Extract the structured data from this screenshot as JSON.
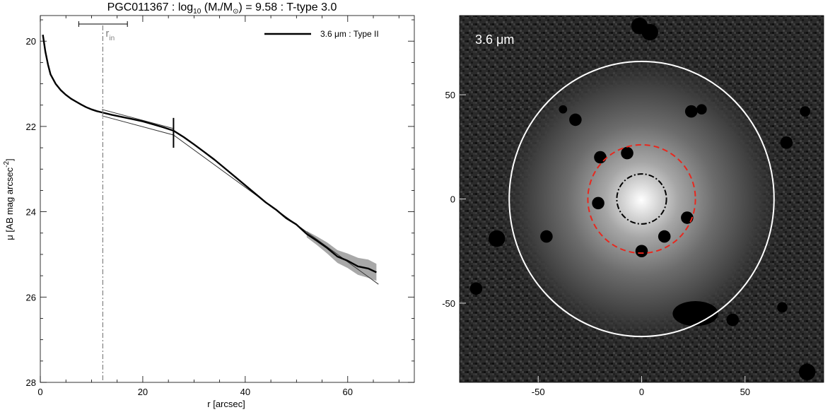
{
  "colors": {
    "profile": "#000000",
    "fit": "#333333",
    "band": "#a8a8a8",
    "rin_line": "#808080",
    "ring_outer": "#ffffff",
    "ring_break": "#e8281e",
    "ring_inner": "#000000",
    "image_bg": "#202020"
  },
  "chart_data": [
    {
      "type": "line",
      "title": {
        "prefix": "PGC011367 : log",
        "sub10": "10",
        "mid": " (M",
        "star": "*",
        "slash": "/M",
        "sun": "⊙",
        "suffix": ") = 9.58 : T-type 3.0"
      },
      "xlabel": "r [arcsec]",
      "ylabel": {
        "main": "μ [AB mag arcsec",
        "exp": "-2",
        "close": "]"
      },
      "xlim": [
        0,
        73
      ],
      "ylim": [
        28,
        19.4
      ],
      "y_inverted": true,
      "xticks": [
        0,
        20,
        40,
        60
      ],
      "xtick_labels": [
        "0",
        "20",
        "40",
        "60"
      ],
      "yticks": [
        20,
        22,
        24,
        26,
        28
      ],
      "ytick_labels": [
        "20",
        "22",
        "24",
        "26",
        "28"
      ],
      "legend": {
        "label": "3.6 μm : Type II",
        "position": "top-right"
      },
      "r_in": {
        "label": "r",
        "sub": "in",
        "x": 12.2,
        "bar_x": [
          7.5,
          17
        ]
      },
      "break_r": 26.0,
      "series": [
        {
          "name": "3.6 μm : Type II",
          "x": [
            0.5,
            1,
            1.5,
            2,
            3,
            4,
            5,
            6,
            7,
            8,
            9,
            10,
            11,
            12,
            14,
            16,
            18,
            20,
            22,
            24,
            26,
            28,
            30,
            32,
            34,
            36,
            38,
            40,
            42,
            44,
            46,
            48,
            50,
            52,
            54,
            56,
            58,
            60,
            62,
            64,
            65.6
          ],
          "y": [
            19.85,
            20.25,
            20.55,
            20.78,
            21.0,
            21.15,
            21.26,
            21.35,
            21.42,
            21.49,
            21.55,
            21.6,
            21.64,
            21.67,
            21.73,
            21.78,
            21.83,
            21.88,
            21.95,
            22.02,
            22.1,
            22.25,
            22.42,
            22.6,
            22.78,
            22.98,
            23.18,
            23.38,
            23.58,
            23.78,
            23.95,
            24.15,
            24.3,
            24.52,
            24.68,
            24.85,
            25.05,
            25.15,
            25.28,
            25.33,
            25.42
          ]
        },
        {
          "name": "",
          "x": [
            12,
            26
          ],
          "y": [
            21.6,
            22.05
          ]
        },
        {
          "name": "",
          "x": [
            12,
            26,
            66
          ],
          "y": [
            21.75,
            22.2,
            25.7
          ]
        }
      ],
      "band": {
        "x": [
          52,
          54,
          56,
          58,
          60,
          62,
          64,
          65.6
        ],
        "lo": [
          24.45,
          24.58,
          24.72,
          24.9,
          24.98,
          25.08,
          25.12,
          25.22
        ],
        "hi": [
          24.6,
          24.78,
          24.98,
          25.2,
          25.32,
          25.48,
          25.55,
          25.62
        ]
      }
    },
    {
      "type": "image",
      "annotation": "3.6 μm",
      "xlim": [
        -88,
        88
      ],
      "ylim": [
        -88,
        88
      ],
      "xticks": [
        -50,
        0,
        50
      ],
      "xtick_labels": [
        "-50",
        "0",
        "50"
      ],
      "yticks": [
        50,
        0,
        -50
      ],
      "ytick_labels": [
        "50",
        "0",
        "-50"
      ],
      "ellipses": [
        {
          "name": "outer",
          "cx": 0,
          "cy": 0,
          "rx": 64,
          "ry": 66,
          "style": "solid"
        },
        {
          "name": "break",
          "cx": 0,
          "cy": 0,
          "rx": 26,
          "ry": 26,
          "style": "dashed"
        },
        {
          "name": "inner",
          "cx": 0,
          "cy": 0,
          "rx": 12,
          "ry": 12,
          "style": "dashdot"
        }
      ],
      "masks": [
        {
          "x": -20,
          "y": 20,
          "r": 3
        },
        {
          "x": -7,
          "y": 22,
          "r": 3
        },
        {
          "x": -21,
          "y": -2,
          "r": 3
        },
        {
          "x": 22,
          "y": -9,
          "r": 3
        },
        {
          "x": 11,
          "y": -18,
          "r": 3
        },
        {
          "x": 0,
          "y": -25,
          "r": 3
        },
        {
          "x": -46,
          "y": -18,
          "r": 3
        },
        {
          "x": 24,
          "y": 42,
          "r": 3
        },
        {
          "x": 29,
          "y": 43,
          "r": 2.5
        },
        {
          "x": -32,
          "y": 38,
          "r": 3
        },
        {
          "x": -38,
          "y": 43,
          "r": 2
        },
        {
          "x": -70,
          "y": -19,
          "r": 4
        },
        {
          "x": 70,
          "y": 27,
          "r": 3
        },
        {
          "x": 79,
          "y": 42,
          "r": 2.5
        },
        {
          "x": 68,
          "y": -52,
          "r": 2.5
        },
        {
          "x": -1,
          "y": 83,
          "r": 4
        },
        {
          "x": 4,
          "y": 80,
          "r": 4
        },
        {
          "x": 80,
          "y": -83,
          "r": 4
        },
        {
          "x": 44,
          "y": -58,
          "r": 3
        },
        {
          "x": -80,
          "y": -43,
          "r": 3
        }
      ],
      "mask_blob": {
        "x": 26,
        "y": -55,
        "rx": 11,
        "ry": 6
      }
    }
  ]
}
